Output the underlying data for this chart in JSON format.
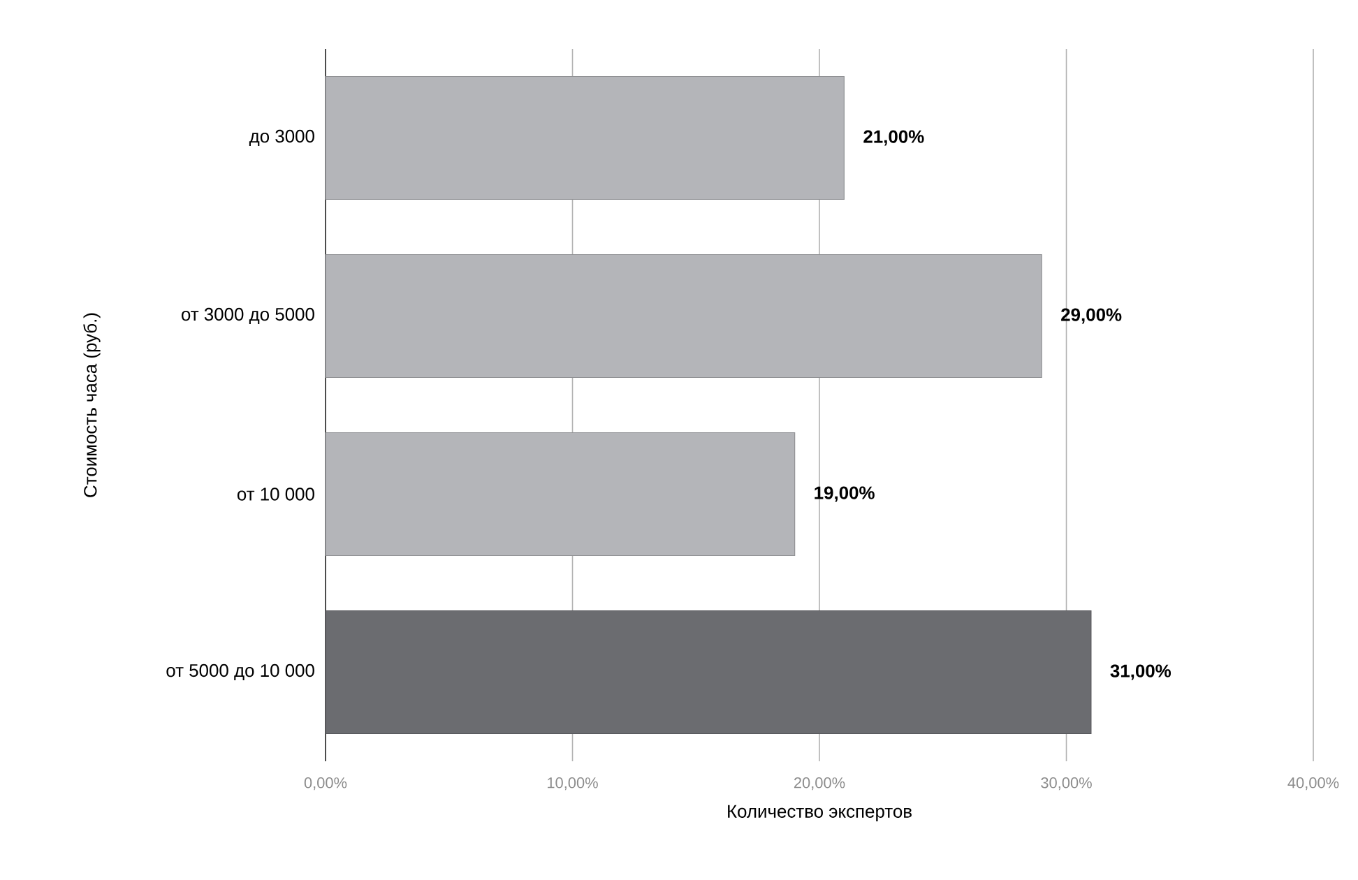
{
  "chart_data": {
    "type": "bar",
    "orientation": "horizontal",
    "xlabel": "Количество экспертов",
    "ylabel": "Стоимость часа (руб.)",
    "categories": [
      "до 3000",
      "от 3000 до 5000",
      "от 10 000",
      "от 5000 до 10 000"
    ],
    "values": [
      21,
      29,
      19,
      31
    ],
    "colors": [
      "#b4b5b9",
      "#b4b5b9",
      "#b4b5b9",
      "#6b6c70"
    ],
    "value_labels": [
      "21,00%",
      "29,00%",
      "19,00%",
      "31,00%"
    ],
    "xlim": [
      0,
      40
    ],
    "xticks": [
      {
        "value": 0,
        "label": "0,00%"
      },
      {
        "value": 10,
        "label": "10,00%"
      },
      {
        "value": 20,
        "label": "20,00%"
      },
      {
        "value": 30,
        "label": "30,00%"
      },
      {
        "value": 40,
        "label": "40,00%"
      }
    ],
    "grid": "x"
  }
}
